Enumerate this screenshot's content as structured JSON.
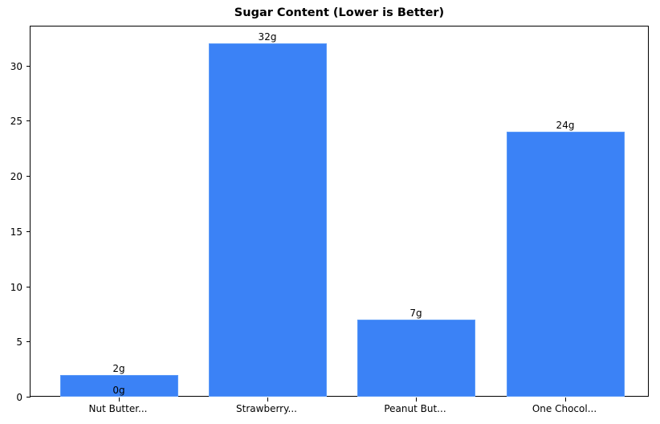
{
  "chart_data": {
    "type": "bar",
    "title": "Sugar Content (Lower is Better)",
    "xlabel": "",
    "ylabel": "",
    "categories": [
      "Nut Butter...",
      "Strawberry...",
      "Peanut But...",
      "One Chocol..."
    ],
    "values": [
      2,
      32,
      7,
      24
    ],
    "bar_labels": [
      "2g",
      "32g",
      "7g",
      "24g"
    ],
    "extra_annotations": [
      {
        "text": "0g",
        "x": "Nut Butter...",
        "y": 0
      }
    ],
    "ylim": [
      0,
      33.6
    ],
    "yticks": [
      0,
      5,
      10,
      15,
      20,
      25,
      30
    ],
    "grid": false,
    "legend": null,
    "colors": {
      "bar": "#3b82f6",
      "bar_edge": "#5b9af8"
    }
  }
}
